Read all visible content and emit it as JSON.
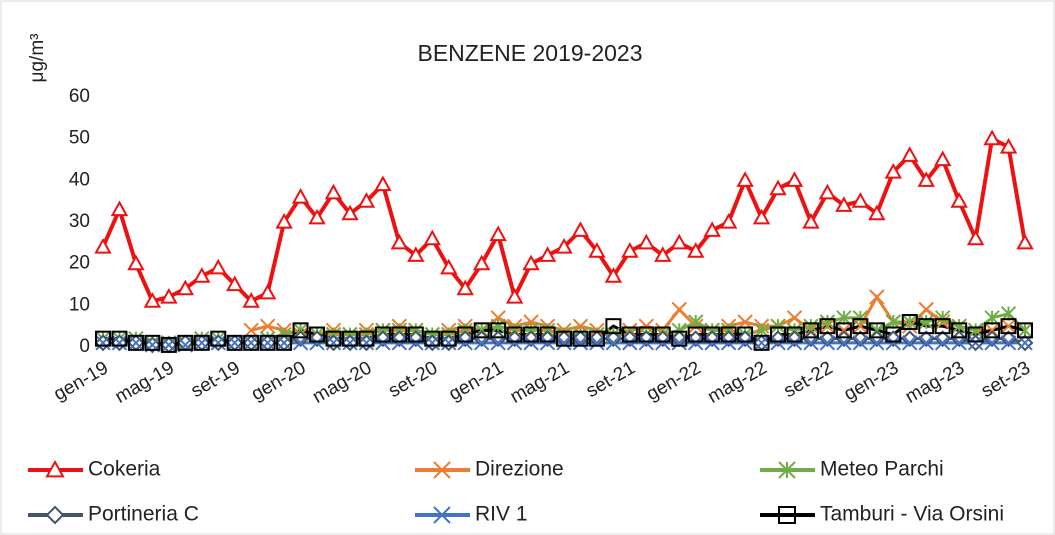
{
  "chart_data": {
    "type": "line",
    "title": "BENZENE 2019-2023",
    "y_label": "μg/m³",
    "categories": [
      "gen-19",
      null,
      null,
      null,
      "mag-19",
      null,
      null,
      null,
      "set-19",
      null,
      null,
      null,
      "gen-20",
      null,
      null,
      null,
      "mag-20",
      null,
      null,
      null,
      "set-20",
      null,
      null,
      null,
      "gen-21",
      null,
      null,
      null,
      "mag-21",
      null,
      null,
      null,
      "set-21",
      null,
      null,
      null,
      "gen-22",
      null,
      null,
      null,
      "mag-22",
      null,
      null,
      null,
      "set-22",
      null,
      null,
      null,
      "gen-23",
      null,
      null,
      null,
      "mag-23",
      null,
      null,
      null,
      "set-23"
    ],
    "ylim": [
      0,
      60
    ],
    "yticks": [
      0,
      10,
      20,
      30,
      40,
      50,
      60
    ],
    "grid": false,
    "series": [
      {
        "name": "Cokeria",
        "color": "#ee1111",
        "marker": "triangle",
        "values": [
          24,
          33,
          20,
          11,
          12,
          14,
          17,
          19,
          15,
          11,
          13,
          30,
          36,
          31,
          37,
          32,
          35,
          39,
          25,
          22,
          26,
          19,
          14,
          20,
          27,
          12,
          20,
          22,
          24,
          28,
          23,
          17,
          23,
          25,
          22,
          25,
          23,
          28,
          30,
          40,
          31,
          38,
          40,
          30,
          37,
          34,
          35,
          32,
          42,
          46,
          40,
          45,
          35,
          26,
          50,
          48,
          25
        ]
      },
      {
        "name": "Direzione",
        "color": "#ed7d31",
        "marker": "x",
        "values": [
          null,
          null,
          null,
          null,
          null,
          null,
          null,
          null,
          null,
          4,
          5,
          4,
          3,
          3,
          4,
          3,
          4,
          4,
          5,
          4,
          3,
          4,
          5,
          4,
          7,
          5,
          6,
          5,
          4,
          5,
          4,
          3,
          4,
          5,
          4,
          9,
          5,
          4,
          5,
          6,
          5,
          5,
          7,
          4,
          5,
          4,
          5,
          12,
          6,
          5,
          9,
          6,
          5,
          4,
          4,
          5,
          4
        ]
      },
      {
        "name": "Meteo Parchi",
        "color": "#70ad47",
        "marker": "star",
        "values": [
          2,
          2,
          2,
          1,
          1,
          1,
          2,
          2,
          1,
          1,
          2,
          3,
          4,
          3,
          3,
          3,
          3,
          4,
          4,
          4,
          3,
          3,
          4,
          4,
          5,
          4,
          4,
          4,
          3,
          3,
          3,
          3,
          3,
          3,
          3,
          4,
          6,
          4,
          4,
          3,
          4,
          5,
          4,
          5,
          6,
          7,
          7,
          4,
          6,
          6,
          6,
          7,
          5,
          4,
          7,
          8,
          4
        ]
      },
      {
        "name": "Portineria C",
        "color": "#44546a",
        "marker": "diamond",
        "values": [
          1,
          1,
          1,
          0.5,
          0.5,
          1,
          1,
          1,
          1,
          1,
          1,
          1,
          2,
          2,
          1,
          1,
          1,
          2,
          2,
          2,
          1,
          1,
          2,
          2,
          2,
          2,
          2,
          2,
          2,
          2,
          2,
          2,
          2,
          2,
          2,
          2,
          2,
          2,
          2,
          2,
          1,
          2,
          2,
          2,
          2,
          2,
          2,
          2,
          2,
          2,
          2,
          2,
          2,
          1,
          2,
          2,
          1
        ]
      },
      {
        "name": "RIV 1",
        "color": "#4472c4",
        "marker": "x",
        "values": [
          1,
          1,
          1,
          0.5,
          0.5,
          0.5,
          1,
          1,
          1,
          1,
          1,
          1,
          1,
          1,
          1,
          1,
          1,
          1,
          1,
          1,
          1,
          1,
          1,
          1,
          1,
          1,
          1,
          1,
          1,
          1,
          1,
          1,
          1,
          1,
          1,
          1,
          1,
          1,
          1,
          1,
          1,
          1,
          1,
          1,
          1,
          1,
          1,
          1,
          1,
          1,
          1,
          1,
          1,
          1,
          1,
          1,
          1
        ]
      },
      {
        "name": "Tamburi - Via Orsini",
        "color": "#000000",
        "marker": "square",
        "values": [
          2,
          2,
          1,
          1,
          0.5,
          1,
          1,
          2,
          1,
          1,
          1,
          1,
          4,
          3,
          2,
          2,
          2,
          3,
          3,
          3,
          2,
          2,
          3,
          4,
          4,
          3,
          3,
          3,
          2,
          2,
          2,
          5,
          3,
          3,
          3,
          2,
          3,
          3,
          3,
          3,
          1,
          3,
          3,
          4,
          5,
          4,
          5,
          4,
          3,
          6,
          5,
          5,
          4,
          3,
          4,
          5,
          4
        ]
      }
    ]
  }
}
